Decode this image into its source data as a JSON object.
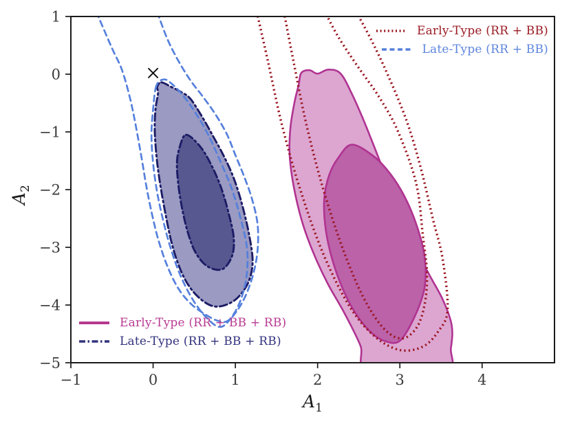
{
  "chart_data": {
    "type": "contour",
    "title": "",
    "grid": false,
    "xlabel": {
      "base": "A",
      "sub": "1"
    },
    "ylabel": {
      "base": "A",
      "sub": "2"
    },
    "xlim": [
      -1,
      4.88
    ],
    "ylim": [
      -5,
      1
    ],
    "xticks": [
      {
        "v": -1,
        "label": "−1"
      },
      {
        "v": 0,
        "label": "0"
      },
      {
        "v": 1,
        "label": "1"
      },
      {
        "v": 2,
        "label": "2"
      },
      {
        "v": 3,
        "label": "3"
      },
      {
        "v": 4,
        "label": "4"
      }
    ],
    "yticks": [
      {
        "v": 1,
        "label": "1"
      },
      {
        "v": 0,
        "label": "0"
      },
      {
        "v": -1,
        "label": "−1"
      },
      {
        "v": -2,
        "label": "−2"
      },
      {
        "v": -3,
        "label": "−3"
      },
      {
        "v": -4,
        "label": "−4"
      },
      {
        "v": -5,
        "label": "−5"
      }
    ],
    "marker": {
      "symbol": "x",
      "x": 0.0,
      "y": 0.02,
      "color": "#111111"
    },
    "colors": {
      "early_all_edge": "#b03391",
      "early_all_fill_outer": "#dca6d1",
      "early_all_fill_inner": "#bb62a8",
      "late_all_edge": "#1c1c66",
      "late_all_fill_outer": "#9a9ac2",
      "late_all_fill_inner": "#585890",
      "early_rrbb": "#9b1620",
      "late_rrbb": "#5580dc",
      "frame": "#1a1a1a"
    },
    "contours": [
      {
        "id": "early-all-outer",
        "series": "Early-Type (RR + BB + RB)",
        "level": "outer",
        "dash": "solid",
        "color": "#b03391",
        "fill": "#dca6d1",
        "width": 2.6,
        "closed": true,
        "points": [
          [
            1.8,
            0.02
          ],
          [
            1.9,
            0.07
          ],
          [
            2.0,
            0.01
          ],
          [
            2.13,
            0.08
          ],
          [
            2.28,
            0.01
          ],
          [
            2.42,
            -0.35
          ],
          [
            2.56,
            -0.8
          ],
          [
            2.7,
            -1.3
          ],
          [
            2.88,
            -1.95
          ],
          [
            3.1,
            -2.7
          ],
          [
            3.33,
            -3.4
          ],
          [
            3.52,
            -3.9
          ],
          [
            3.63,
            -4.35
          ],
          [
            3.62,
            -4.75
          ],
          [
            3.55,
            -5.15
          ],
          [
            2.62,
            -5.15
          ],
          [
            2.52,
            -4.7
          ],
          [
            2.33,
            -4.15
          ],
          [
            2.12,
            -3.62
          ],
          [
            1.95,
            -3.1
          ],
          [
            1.81,
            -2.55
          ],
          [
            1.71,
            -1.95
          ],
          [
            1.66,
            -1.4
          ],
          [
            1.67,
            -0.92
          ],
          [
            1.72,
            -0.48
          ],
          [
            1.77,
            -0.18
          ]
        ]
      },
      {
        "id": "early-all-inner",
        "series": "Early-Type (RR + BB + RB)",
        "level": "inner",
        "dash": "solid",
        "color": "#b03391",
        "fill": "#bb62a8",
        "width": 2.6,
        "closed": true,
        "points": [
          [
            2.42,
            -1.22
          ],
          [
            2.68,
            -1.42
          ],
          [
            2.88,
            -1.72
          ],
          [
            3.05,
            -2.1
          ],
          [
            3.2,
            -2.6
          ],
          [
            3.3,
            -3.15
          ],
          [
            3.3,
            -3.7
          ],
          [
            3.18,
            -4.2
          ],
          [
            3.0,
            -4.62
          ],
          [
            2.81,
            -4.62
          ],
          [
            2.63,
            -4.45
          ],
          [
            2.45,
            -4.12
          ],
          [
            2.3,
            -3.7
          ],
          [
            2.18,
            -3.22
          ],
          [
            2.1,
            -2.7
          ],
          [
            2.08,
            -2.18
          ],
          [
            2.14,
            -1.75
          ],
          [
            2.26,
            -1.43
          ]
        ]
      },
      {
        "id": "late-all-outer",
        "series": "Late-Type (RR + BB + RB)",
        "level": "outer",
        "dash": "dashdot",
        "color": "#1c1c66",
        "fill": "#9a9ac2",
        "width": 2.9,
        "closed": true,
        "points": [
          [
            0.1,
            -0.14
          ],
          [
            0.22,
            -0.22
          ],
          [
            0.33,
            -0.3
          ],
          [
            0.45,
            -0.42
          ],
          [
            0.58,
            -0.7
          ],
          [
            0.72,
            -1.05
          ],
          [
            0.86,
            -1.42
          ],
          [
            0.98,
            -1.8
          ],
          [
            1.08,
            -2.25
          ],
          [
            1.17,
            -2.8
          ],
          [
            1.21,
            -3.25
          ],
          [
            1.16,
            -3.6
          ],
          [
            1.03,
            -3.87
          ],
          [
            0.88,
            -4.0
          ],
          [
            0.73,
            -4.02
          ],
          [
            0.58,
            -3.9
          ],
          [
            0.44,
            -3.68
          ],
          [
            0.33,
            -3.38
          ],
          [
            0.23,
            -2.95
          ],
          [
            0.15,
            -2.42
          ],
          [
            0.08,
            -1.85
          ],
          [
            0.04,
            -1.4
          ],
          [
            0.02,
            -0.95
          ],
          [
            0.03,
            -0.6
          ],
          [
            0.06,
            -0.33
          ],
          [
            0.05,
            -0.22
          ]
        ]
      },
      {
        "id": "late-all-inner",
        "series": "Late-Type (RR + BB + RB)",
        "level": "inner",
        "dash": "dashdot",
        "color": "#1c1c66",
        "fill": "#585890",
        "width": 2.9,
        "closed": true,
        "points": [
          [
            0.4,
            -1.05
          ],
          [
            0.57,
            -1.25
          ],
          [
            0.71,
            -1.58
          ],
          [
            0.83,
            -1.98
          ],
          [
            0.92,
            -2.42
          ],
          [
            0.98,
            -2.83
          ],
          [
            0.96,
            -3.15
          ],
          [
            0.84,
            -3.38
          ],
          [
            0.66,
            -3.33
          ],
          [
            0.52,
            -3.1
          ],
          [
            0.43,
            -2.78
          ],
          [
            0.36,
            -2.38
          ],
          [
            0.31,
            -1.95
          ],
          [
            0.29,
            -1.55
          ],
          [
            0.32,
            -1.28
          ]
        ]
      },
      {
        "id": "late-rrbb-outer",
        "series": "Late-Type (RR + BB)",
        "level": "outer",
        "dash": "dashed",
        "color": "#5580dc",
        "fill": null,
        "width": 2.7,
        "closed": false,
        "points": [
          [
            -0.69,
            1.08
          ],
          [
            -0.5,
            0.45
          ],
          [
            -0.38,
            0.08
          ],
          [
            -0.28,
            -0.42
          ],
          [
            -0.21,
            -0.9
          ],
          [
            -0.14,
            -1.45
          ],
          [
            -0.08,
            -1.96
          ],
          [
            -0.01,
            -2.45
          ],
          [
            0.07,
            -2.9
          ],
          [
            0.18,
            -3.35
          ],
          [
            0.31,
            -3.72
          ],
          [
            0.46,
            -3.98
          ],
          [
            0.62,
            -4.15
          ],
          [
            0.78,
            -4.27
          ],
          [
            0.9,
            -4.28
          ],
          [
            1.02,
            -4.1
          ],
          [
            1.13,
            -3.82
          ],
          [
            1.22,
            -3.45
          ],
          [
            1.27,
            -3.05
          ],
          [
            1.27,
            -2.6
          ],
          [
            1.2,
            -2.15
          ],
          [
            1.1,
            -1.75
          ],
          [
            1.0,
            -1.4
          ],
          [
            0.9,
            -1.05
          ],
          [
            0.76,
            -0.7
          ],
          [
            0.6,
            -0.38
          ],
          [
            0.45,
            -0.1
          ],
          [
            0.3,
            0.25
          ],
          [
            0.17,
            0.62
          ],
          [
            0.05,
            1.08
          ]
        ]
      },
      {
        "id": "late-rrbb-inner",
        "series": "Late-Type (RR + BB)",
        "level": "inner",
        "dash": "dashed",
        "color": "#5580dc",
        "fill": null,
        "width": 2.7,
        "closed": true,
        "points": [
          [
            0.04,
            -0.2
          ],
          [
            0.0,
            -0.6
          ],
          [
            -0.02,
            -1.05
          ],
          [
            0.0,
            -1.55
          ],
          [
            0.05,
            -2.05
          ],
          [
            0.12,
            -2.52
          ],
          [
            0.21,
            -3.0
          ],
          [
            0.33,
            -3.48
          ],
          [
            0.48,
            -3.9
          ],
          [
            0.65,
            -4.22
          ],
          [
            0.82,
            -4.38
          ],
          [
            0.97,
            -4.18
          ],
          [
            1.08,
            -3.85
          ],
          [
            1.14,
            -3.45
          ],
          [
            1.14,
            -3.0
          ],
          [
            1.06,
            -2.48
          ],
          [
            0.96,
            -2.0
          ],
          [
            0.83,
            -1.55
          ],
          [
            0.67,
            -1.05
          ],
          [
            0.52,
            -0.68
          ],
          [
            0.37,
            -0.38
          ],
          [
            0.23,
            -0.17
          ],
          [
            0.13,
            -0.09
          ]
        ]
      },
      {
        "id": "early-rrbb-outer",
        "series": "Early-Type (RR + BB)",
        "level": "outer",
        "dash": "dotted",
        "color": "#9b1620",
        "fill": null,
        "width": 3.4,
        "closed": false,
        "points": [
          [
            1.26,
            1.08
          ],
          [
            1.4,
            0.2
          ],
          [
            1.57,
            -0.9
          ],
          [
            1.8,
            -2.05
          ],
          [
            2.08,
            -3.15
          ],
          [
            2.4,
            -4.05
          ],
          [
            2.7,
            -4.55
          ],
          [
            3.0,
            -4.78
          ],
          [
            3.28,
            -4.72
          ],
          [
            3.47,
            -4.45
          ],
          [
            3.58,
            -4.08
          ],
          [
            3.52,
            -3.2
          ],
          [
            3.4,
            -2.5
          ],
          [
            3.25,
            -1.6
          ],
          [
            3.08,
            -0.8
          ],
          [
            2.85,
            0.0
          ],
          [
            2.65,
            0.6
          ],
          [
            2.47,
            1.08
          ]
        ]
      },
      {
        "id": "early-rrbb-inner",
        "series": "Early-Type (RR + BB)",
        "level": "inner",
        "dash": "dotted",
        "color": "#9b1620",
        "fill": null,
        "width": 3.4,
        "closed": false,
        "points": [
          [
            1.59,
            1.08
          ],
          [
            1.71,
            0.2
          ],
          [
            1.86,
            -0.85
          ],
          [
            2.06,
            -1.95
          ],
          [
            2.3,
            -3.0
          ],
          [
            2.55,
            -3.85
          ],
          [
            2.8,
            -4.4
          ],
          [
            3.02,
            -4.58
          ],
          [
            3.2,
            -4.4
          ],
          [
            3.3,
            -4.0
          ],
          [
            3.33,
            -3.45
          ],
          [
            3.28,
            -2.8
          ],
          [
            3.2,
            -1.9
          ],
          [
            2.98,
            -1.0
          ],
          [
            2.75,
            -0.4
          ],
          [
            2.48,
            0.15
          ],
          [
            2.25,
            0.65
          ],
          [
            2.09,
            1.08
          ]
        ]
      }
    ],
    "legends": {
      "top_right": {
        "items": [
          {
            "label": "Early-Type (RR + BB)",
            "color": "#9b1620",
            "dash": "dotted"
          },
          {
            "label": "Late-Type (RR + BB)",
            "color": "#5580dc",
            "dash": "dashed"
          }
        ]
      },
      "bottom_left": {
        "items": [
          {
            "label": "Early-Type (RR + BB + RB)",
            "color": "#b5388f",
            "dash": "solid"
          },
          {
            "label": "Late-Type (RR + BB + RB)",
            "color": "#32327e",
            "dash": "dashdot"
          }
        ]
      }
    }
  }
}
